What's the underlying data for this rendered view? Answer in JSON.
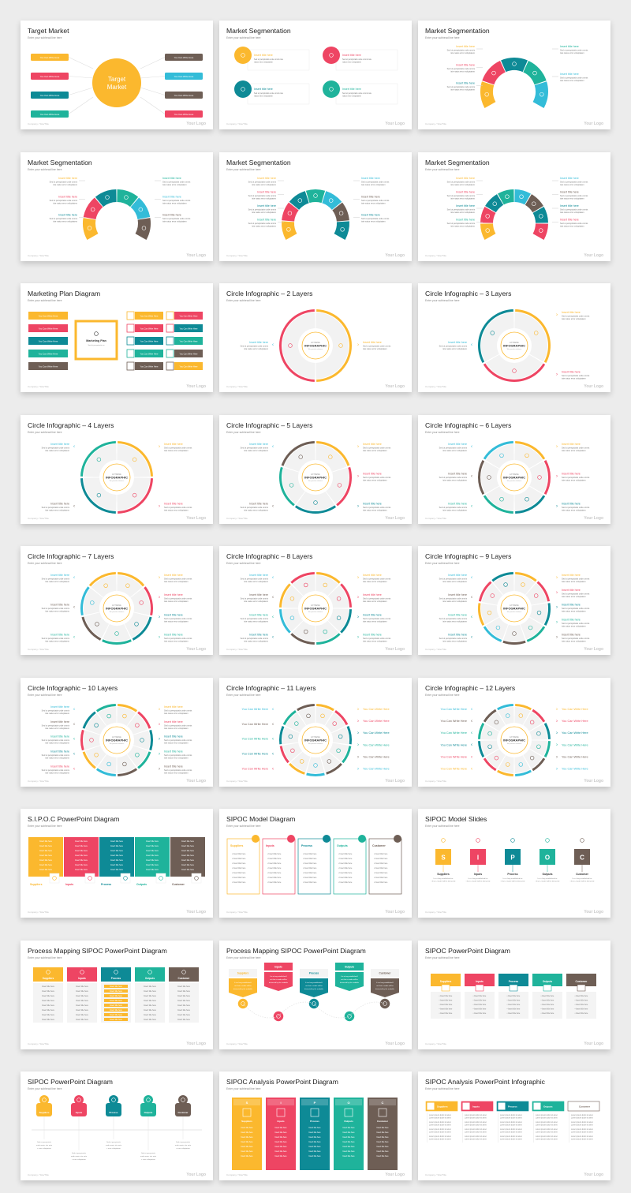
{
  "colors": {
    "yellow": "#FBB82E",
    "red": "#EE4563",
    "teal": "#0E8A96",
    "green": "#1FB39B",
    "cyan": "#33BCD8",
    "brown": "#6E5E55",
    "gray": "#EFEFEF"
  },
  "common": {
    "subtitle": "Enter your subhead line here",
    "footer": "Company / Site/Title",
    "logo": "Your Logo",
    "insert_title": "Insert title here",
    "body_text": "Sed ut perspiciatis unde omnis iste natus error voluptatem",
    "write_here": "You Can Write Here",
    "infographic_small": "EXTREME",
    "infographic_big": "INFOGRAPHIC",
    "infographic_tiny": "We provide solutions",
    "insert_title_here": "Insert title here",
    "lorem_line": "Lorem ipsum dolor sit amet",
    "sipoc_desc": "It is a long established fact that a reader will be distracted",
    "sipoc_desc2": "It is a long established fact that a reader will be distracted by the readable content"
  },
  "sipoc": {
    "letters": [
      "S",
      "I",
      "P",
      "O",
      "C"
    ],
    "labels": [
      "Suppliers",
      "Inputs",
      "Process",
      "Outputs",
      "Customer"
    ]
  },
  "slides": [
    {
      "title": "Target Market",
      "kind": "target",
      "center": [
        "Target",
        "Market"
      ]
    },
    {
      "title": "Market Segmentation",
      "kind": "seg-cards"
    },
    {
      "title": "Market Segmentation",
      "kind": "arc",
      "n": 5
    },
    {
      "title": "Market Segmentation",
      "kind": "arc",
      "n": 6
    },
    {
      "title": "Market Segmentation",
      "kind": "arc",
      "n": 7
    },
    {
      "title": "Market Segmentation",
      "kind": "arc",
      "n": 8
    },
    {
      "title": "Marketing Plan Diagram",
      "kind": "plan",
      "center": "Marketing Plan"
    },
    {
      "title": "Circle Infographic – 2 Layers",
      "kind": "circle",
      "n": 2
    },
    {
      "title": "Circle Infographic – 3 Layers",
      "kind": "circle",
      "n": 3
    },
    {
      "title": "Circle Infographic – 4 Layers",
      "kind": "circle",
      "n": 4
    },
    {
      "title": "Circle Infographic – 5 Layers",
      "kind": "circle",
      "n": 5
    },
    {
      "title": "Circle Infographic – 6 Layers",
      "kind": "circle",
      "n": 6
    },
    {
      "title": "Circle Infographic – 7 Layers",
      "kind": "circle",
      "n": 7
    },
    {
      "title": "Circle Infographic – 8 Layers",
      "kind": "circle",
      "n": 8
    },
    {
      "title": "Circle Infographic – 9 Layers",
      "kind": "circle",
      "n": 9
    },
    {
      "title": "Circle Infographic – 10 Layers",
      "kind": "circle",
      "n": 10
    },
    {
      "title": "Circle Infographic – 11 Layers",
      "kind": "circle",
      "n": 11,
      "write": true
    },
    {
      "title": "Circle Infographic – 12 Layers",
      "kind": "circle",
      "n": 12,
      "write": true
    },
    {
      "title": "S.I.P.O.C PowerPoint Diagram",
      "kind": "sipoc-blocks"
    },
    {
      "title": "SIPOC Model Diagram",
      "kind": "sipoc-outline"
    },
    {
      "title": "SIPOC Model Slides",
      "kind": "sipoc-letters"
    },
    {
      "title": "Process Mapping SIPOC PowerPoint Diagram",
      "kind": "sipoc-headers"
    },
    {
      "title": "Process Mapping SIPOC PowerPoint Diagram",
      "kind": "sipoc-zigzag"
    },
    {
      "title": "SIPOC PowerPoint Diagram",
      "kind": "sipoc-cards"
    },
    {
      "title": "SIPOC PowerPoint Diagram",
      "kind": "sipoc-timeline"
    },
    {
      "title": "SIPOC Analysis PowerPoint Diagram",
      "kind": "sipoc-columns"
    },
    {
      "title": "SIPOC Analysis PowerPoint Infographic",
      "kind": "sipoc-tabs"
    }
  ]
}
